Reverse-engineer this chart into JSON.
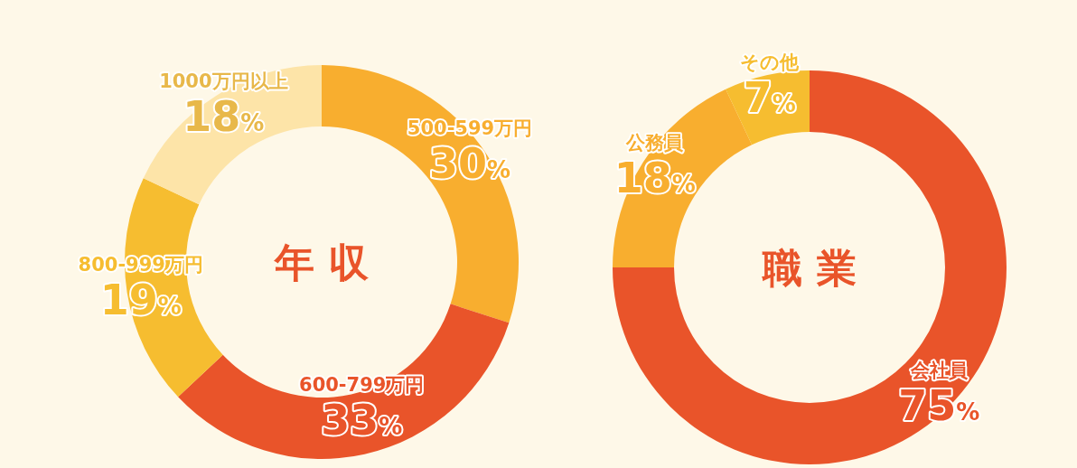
{
  "chart_data": [
    {
      "type": "donut",
      "title": "年 収",
      "categories": [
        "500-599万円",
        "600-799万円",
        "800-999万円",
        "1000万円以上"
      ],
      "values": [
        30,
        33,
        19,
        18
      ],
      "colors": [
        "#f8ae2f",
        "#e9542a",
        "#f6bd30",
        "#fde4a8"
      ],
      "value_labels": [
        "30%",
        "33%",
        "19%",
        "18%"
      ]
    },
    {
      "type": "donut",
      "title": "職 業",
      "categories": [
        "会社員",
        "公務員",
        "その他"
      ],
      "values": [
        75,
        18,
        7
      ],
      "colors": [
        "#e9542a",
        "#f8ae2f",
        "#f6bd30"
      ],
      "value_labels": [
        "75%",
        "18%",
        "7%"
      ]
    }
  ]
}
